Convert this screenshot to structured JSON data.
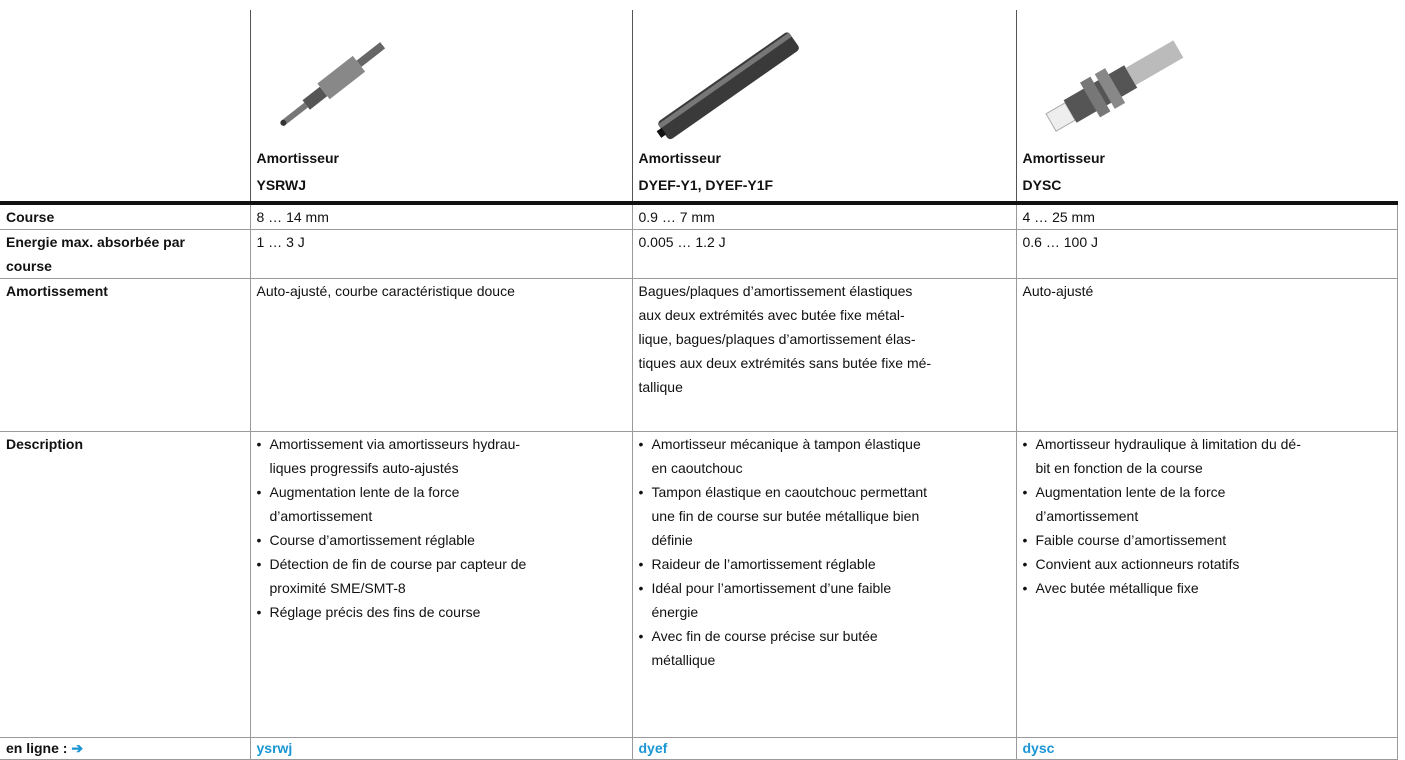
{
  "header": {
    "products": [
      {
        "name": "Amortisseur",
        "model": "YSRWJ"
      },
      {
        "name": "Amortisseur",
        "model": "DYEF-Y1, DYEF-Y1F"
      },
      {
        "name": "Amortisseur",
        "model": "DYSC"
      }
    ]
  },
  "table": {
    "rows": [
      {
        "label": "Course",
        "cells": [
          [
            "8 … 14 mm"
          ],
          [
            "0.9 … 7 mm"
          ],
          [
            "4 … 25 mm"
          ]
        ]
      },
      {
        "label": "Energie max. absorbée par course",
        "cells": [
          [
            "1 … 3 J"
          ],
          [
            "0.005 … 1.2 J"
          ],
          [
            "0.6 … 100 J"
          ]
        ]
      },
      {
        "label": "Amortissement",
        "cells": [
          [
            "Auto-ajusté, courbe caractéristique douce"
          ],
          [
            "Bagues/plaques d’amortissement élastiques",
            "aux deux extrémités avec butée fixe métal-",
            "lique, bagues/plaques d’amortissement élas-",
            "tiques aux deux extrémités sans butée fixe mé-",
            "tallique"
          ],
          [
            "Auto-ajusté"
          ]
        ]
      },
      {
        "label": "Description",
        "bullets": [
          [
            [
              "Amortissement via amortisseurs hydrau-",
              "liques progressifs auto-ajustés"
            ],
            [
              "Augmentation lente de la force",
              "d’amortissement"
            ],
            [
              "Course d’amortissement réglable"
            ],
            [
              "Détection de fin de course par capteur de",
              "proximité SME/SMT-8"
            ],
            [
              "Réglage précis des fins de course"
            ]
          ],
          [
            [
              "Amortisseur mécanique à tampon élastique",
              "en caoutchouc"
            ],
            [
              "Tampon élastique en caoutchouc permettant",
              "une fin de course sur butée métallique bien",
              "définie"
            ],
            [
              "Raideur de l’amortissement réglable"
            ],
            [
              "Idéal pour l’amortissement d’une faible",
              "énergie"
            ],
            [
              "Avec fin de course précise sur butée",
              "métallique"
            ]
          ],
          [
            [
              "Amortisseur hydraulique à limitation du dé-",
              "bit en fonction de la course"
            ],
            [
              "Augmentation lente de la force",
              "d’amortissement"
            ],
            [
              "Faible course d’amortissement"
            ],
            [
              "Convient aux actionneurs rotatifs"
            ],
            [
              "Avec butée métallique fixe"
            ]
          ]
        ]
      }
    ]
  },
  "footer": {
    "label": "en ligne :",
    "links": [
      "ysrwj",
      "dyef",
      "dysc"
    ]
  }
}
